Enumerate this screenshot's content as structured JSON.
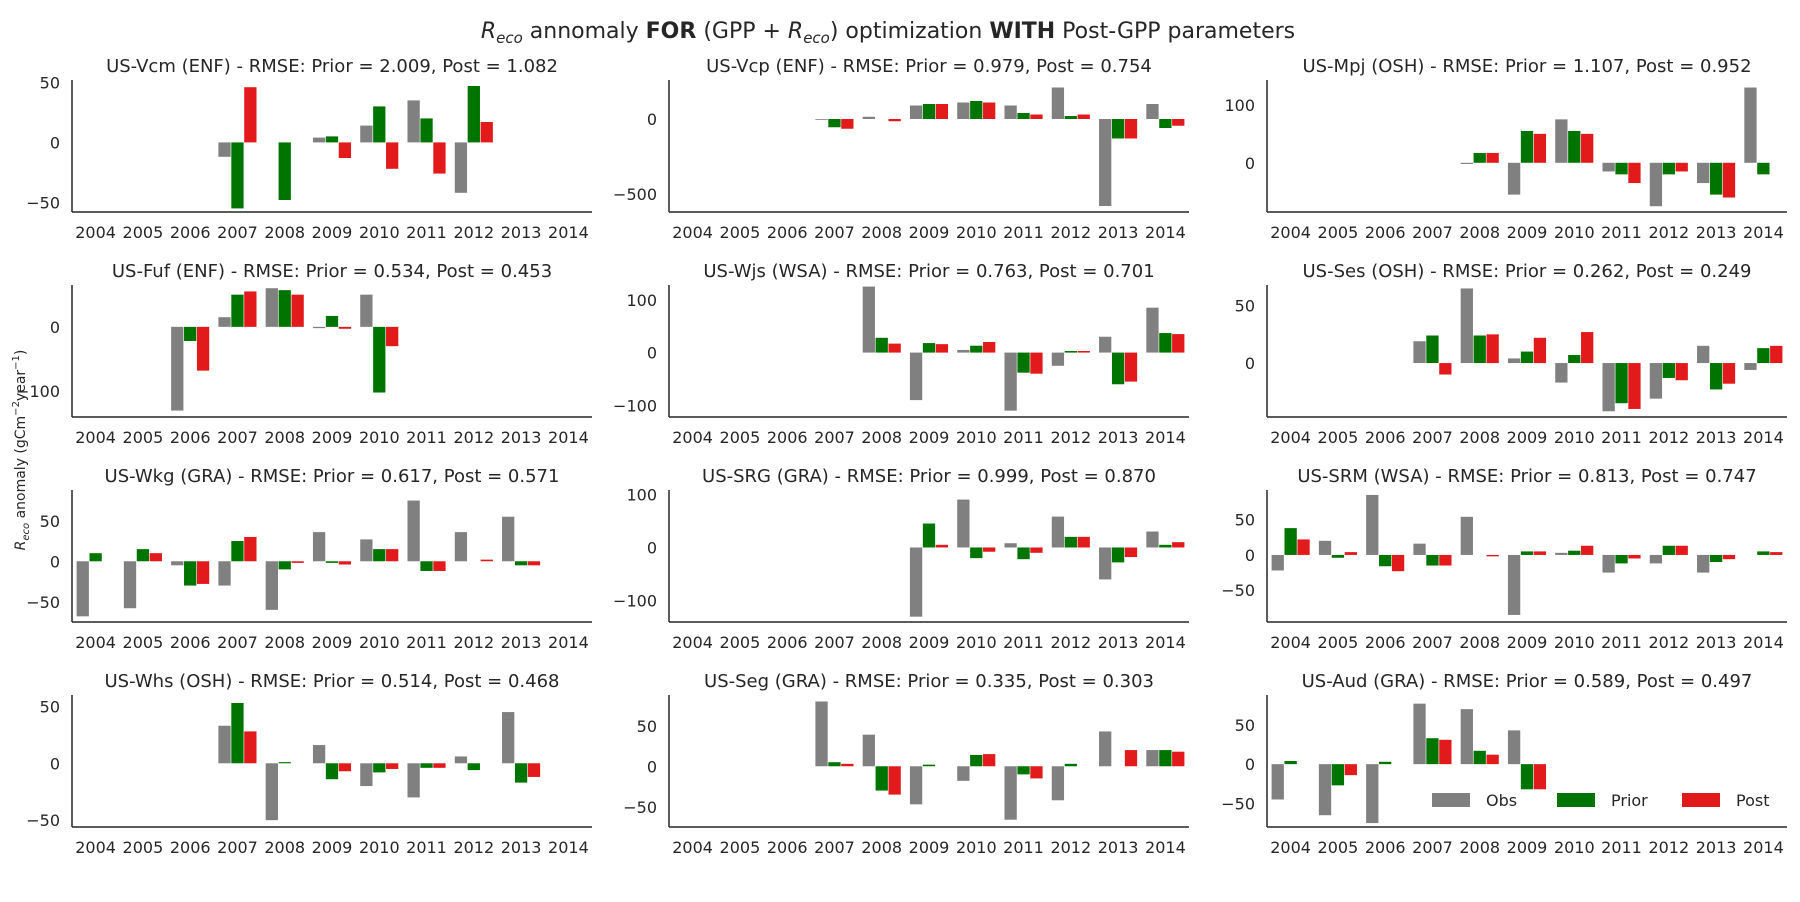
{
  "figure": {
    "title_pre": "R",
    "title_sub": "eco",
    "title_mid1": " annomaly ",
    "title_bold1": "FOR",
    "title_mid2": " (GPP + ",
    "title_sub_r": "R",
    "title_sub_r_sub": "eco",
    "title_mid3": ") optimization ",
    "title_bold2": "WITH",
    "title_mid4": " Post-GPP parameters",
    "ylabel_r": "R",
    "ylabel_sub": "eco",
    "ylabel_rest": " anomaly (gCm",
    "ylabel_sup1": "−2",
    "ylabel_rest2": "year",
    "ylabel_sup2": "−1",
    "ylabel_end": ")"
  },
  "colors": {
    "Obs": "#808080",
    "Prior": "#007400",
    "Post": "#e31a1c"
  },
  "legend": [
    "Obs",
    "Prior",
    "Post"
  ],
  "chart_data": [
    {
      "type": "bar",
      "title": "US-Vcm (ENF) - RMSE: Prior = 2.009, Post = 1.082",
      "categories": [
        "2004",
        "2005",
        "2006",
        "2007",
        "2008",
        "2009",
        "2010",
        "2011",
        "2012",
        "2013",
        "2014"
      ],
      "ylim": [
        -58,
        52
      ],
      "yticks": [
        50,
        0,
        -50
      ],
      "series": [
        {
          "name": "Obs",
          "values": [
            null,
            null,
            null,
            -12,
            null,
            4,
            14,
            35,
            -42,
            null,
            null
          ]
        },
        {
          "name": "Prior",
          "values": [
            null,
            null,
            null,
            -55,
            -48,
            5,
            30,
            20,
            47,
            null,
            null
          ]
        },
        {
          "name": "Post",
          "values": [
            null,
            null,
            null,
            46,
            null,
            -13,
            -22,
            -26,
            17,
            null,
            null
          ]
        }
      ]
    },
    {
      "type": "bar",
      "title": "US-Vcp (ENF) - RMSE: Prior = 0.979, Post = 0.754",
      "categories": [
        "2004",
        "2005",
        "2006",
        "2007",
        "2008",
        "2009",
        "2010",
        "2011",
        "2012",
        "2013",
        "2014"
      ],
      "ylim": [
        -620,
        260
      ],
      "yticks": [
        0,
        -500
      ],
      "series": [
        {
          "name": "Obs",
          "values": [
            null,
            null,
            null,
            -5,
            15,
            90,
            110,
            90,
            210,
            -580,
            100
          ]
        },
        {
          "name": "Prior",
          "values": [
            null,
            null,
            null,
            -55,
            null,
            100,
            120,
            40,
            20,
            -130,
            -60
          ]
        },
        {
          "name": "Post",
          "values": [
            null,
            null,
            null,
            -65,
            -15,
            100,
            110,
            30,
            30,
            -130,
            -45
          ]
        }
      ]
    },
    {
      "type": "bar",
      "title": "US-Mpj (OSH) - RMSE: Prior = 1.107, Post = 0.952",
      "categories": [
        "2004",
        "2005",
        "2006",
        "2007",
        "2008",
        "2009",
        "2010",
        "2011",
        "2012",
        "2013",
        "2014"
      ],
      "ylim": [
        -85,
        143
      ],
      "yticks": [
        100,
        0
      ],
      "series": [
        {
          "name": "Obs",
          "values": [
            null,
            null,
            null,
            null,
            -2,
            -55,
            75,
            -15,
            -75,
            -35,
            130
          ]
        },
        {
          "name": "Prior",
          "values": [
            null,
            null,
            null,
            null,
            17,
            55,
            55,
            -20,
            -20,
            -55,
            -20
          ]
        },
        {
          "name": "Post",
          "values": [
            null,
            null,
            null,
            null,
            17,
            50,
            50,
            -35,
            -15,
            -60,
            null
          ]
        }
      ]
    },
    {
      "type": "bar",
      "title": "US-Fuf (ENF) - RMSE: Prior = 0.534, Post = 0.453",
      "categories": [
        "2004",
        "2005",
        "2006",
        "2007",
        "2008",
        "2009",
        "2010",
        "2011",
        "2012",
        "2013",
        "2014"
      ],
      "ylim": [
        -140,
        65
      ],
      "yticks": [
        0,
        -100
      ],
      "series": [
        {
          "name": "Obs",
          "values": [
            null,
            null,
            -130,
            15,
            60,
            -2,
            50,
            null,
            null,
            null,
            null
          ]
        },
        {
          "name": "Prior",
          "values": [
            null,
            null,
            -22,
            50,
            57,
            17,
            -102,
            null,
            null,
            null,
            null
          ]
        },
        {
          "name": "Post",
          "values": [
            null,
            null,
            -68,
            55,
            50,
            -3,
            -30,
            null,
            null,
            null,
            null
          ]
        }
      ]
    },
    {
      "type": "bar",
      "title": "US-Wjs (WSA) - RMSE: Prior = 0.763, Post = 0.701",
      "categories": [
        "2004",
        "2005",
        "2006",
        "2007",
        "2008",
        "2009",
        "2010",
        "2011",
        "2012",
        "2013",
        "2014"
      ],
      "ylim": [
        -122,
        128
      ],
      "yticks": [
        100,
        0,
        -100
      ],
      "series": [
        {
          "name": "Obs",
          "values": [
            null,
            null,
            null,
            null,
            125,
            -90,
            5,
            -110,
            -25,
            30,
            85
          ]
        },
        {
          "name": "Prior",
          "values": [
            null,
            null,
            null,
            null,
            28,
            18,
            13,
            -38,
            3,
            -60,
            37
          ]
        },
        {
          "name": "Post",
          "values": [
            null,
            null,
            null,
            null,
            17,
            16,
            20,
            -40,
            3,
            -55,
            35
          ]
        }
      ]
    },
    {
      "type": "bar",
      "title": "US-Ses (OSH) - RMSE: Prior = 0.262, Post = 0.249",
      "categories": [
        "2004",
        "2005",
        "2006",
        "2007",
        "2008",
        "2009",
        "2010",
        "2011",
        "2012",
        "2013",
        "2014"
      ],
      "ylim": [
        -47,
        68
      ],
      "yticks": [
        50,
        0
      ],
      "series": [
        {
          "name": "Obs",
          "values": [
            null,
            null,
            null,
            19,
            65,
            4,
            -17,
            -42,
            -31,
            15,
            -6
          ]
        },
        {
          "name": "Prior",
          "values": [
            null,
            null,
            null,
            24,
            24,
            10,
            7,
            -35,
            -13,
            -23,
            13
          ]
        },
        {
          "name": "Post",
          "values": [
            null,
            null,
            null,
            -10,
            25,
            22,
            27,
            -40,
            -15,
            -18,
            15
          ]
        }
      ]
    },
    {
      "type": "bar",
      "title": "US-Wkg (GRA) - RMSE: Prior = 0.617, Post = 0.571",
      "categories": [
        "2004",
        "2005",
        "2006",
        "2007",
        "2008",
        "2009",
        "2010",
        "2011",
        "2012",
        "2013",
        "2014"
      ],
      "ylim": [
        -75,
        88
      ],
      "yticks": [
        50,
        0,
        -50
      ],
      "series": [
        {
          "name": "Obs",
          "values": [
            -68,
            -58,
            -5,
            -30,
            -60,
            36,
            27,
            75,
            36,
            55,
            null
          ]
        },
        {
          "name": "Prior",
          "values": [
            10,
            15,
            -30,
            25,
            -10,
            -2,
            15,
            -12,
            null,
            -5,
            null
          ]
        },
        {
          "name": "Post",
          "values": [
            null,
            10,
            -28,
            30,
            -2,
            -4,
            15,
            -12,
            2,
            -5,
            null
          ]
        }
      ]
    },
    {
      "type": "bar",
      "title": "US-SRG (GRA) - RMSE: Prior = 0.999, Post = 0.870",
      "categories": [
        "2004",
        "2005",
        "2006",
        "2007",
        "2008",
        "2009",
        "2010",
        "2011",
        "2012",
        "2013",
        "2014"
      ],
      "ylim": [
        -140,
        108
      ],
      "yticks": [
        100,
        0,
        -100
      ],
      "series": [
        {
          "name": "Obs",
          "values": [
            null,
            null,
            null,
            null,
            null,
            -130,
            90,
            8,
            58,
            -60,
            30
          ]
        },
        {
          "name": "Prior",
          "values": [
            null,
            null,
            null,
            null,
            null,
            45,
            -20,
            -22,
            20,
            -28,
            5
          ]
        },
        {
          "name": "Post",
          "values": [
            null,
            null,
            null,
            null,
            null,
            5,
            -8,
            -10,
            20,
            -18,
            10
          ]
        }
      ]
    },
    {
      "type": "bar",
      "title": "US-SRM (WSA) - RMSE: Prior = 0.813, Post = 0.747",
      "categories": [
        "2004",
        "2005",
        "2006",
        "2007",
        "2008",
        "2009",
        "2010",
        "2011",
        "2012",
        "2013",
        "2014"
      ],
      "ylim": [
        -95,
        92
      ],
      "yticks": [
        50,
        0,
        -50
      ],
      "series": [
        {
          "name": "Obs",
          "values": [
            -22,
            20,
            85,
            16,
            54,
            -85,
            3,
            -25,
            -12,
            -25,
            null
          ]
        },
        {
          "name": "Prior",
          "values": [
            38,
            -4,
            -16,
            -15,
            null,
            5,
            6,
            -12,
            13,
            -10,
            5
          ]
        },
        {
          "name": "Post",
          "values": [
            22,
            4,
            -23,
            -15,
            -2,
            5,
            13,
            -5,
            13,
            -6,
            4
          ]
        }
      ]
    },
    {
      "type": "bar",
      "title": "US-Whs (OSH) - RMSE: Prior = 0.514, Post = 0.468",
      "categories": [
        "2004",
        "2005",
        "2006",
        "2007",
        "2008",
        "2009",
        "2010",
        "2011",
        "2012",
        "2013",
        "2014"
      ],
      "ylim": [
        -56,
        60
      ],
      "yticks": [
        50,
        0,
        -50
      ],
      "series": [
        {
          "name": "Obs",
          "values": [
            null,
            null,
            null,
            33,
            -50,
            16,
            -20,
            -30,
            6,
            45,
            null
          ]
        },
        {
          "name": "Prior",
          "values": [
            null,
            null,
            null,
            53,
            1,
            -14,
            -8,
            -4,
            -6,
            -17,
            null
          ]
        },
        {
          "name": "Post",
          "values": [
            null,
            null,
            null,
            28,
            null,
            -7,
            -5,
            -4,
            null,
            -12,
            null
          ]
        }
      ]
    },
    {
      "type": "bar",
      "title": "US-Seg (GRA) - RMSE: Prior = 0.335, Post = 0.303",
      "categories": [
        "2004",
        "2005",
        "2006",
        "2007",
        "2008",
        "2009",
        "2010",
        "2011",
        "2012",
        "2013",
        "2014"
      ],
      "ylim": [
        -75,
        88
      ],
      "yticks": [
        50,
        0,
        -50
      ],
      "series": [
        {
          "name": "Obs",
          "values": [
            null,
            null,
            null,
            80,
            39,
            -47,
            -18,
            -66,
            -42,
            43,
            20
          ]
        },
        {
          "name": "Prior",
          "values": [
            null,
            null,
            null,
            5,
            -30,
            2,
            14,
            -10,
            3,
            null,
            20
          ]
        },
        {
          "name": "Post",
          "values": [
            null,
            null,
            null,
            3,
            -35,
            null,
            15,
            -15,
            null,
            20,
            18
          ]
        }
      ]
    },
    {
      "type": "bar",
      "title": "US-Aud (GRA) - RMSE: Prior = 0.589, Post = 0.497",
      "categories": [
        "2004",
        "2005",
        "2006",
        "2007",
        "2008",
        "2009",
        "2010",
        "2011",
        "2012",
        "2013",
        "2014"
      ],
      "ylim": [
        -80,
        88
      ],
      "yticks": [
        50,
        0,
        -50
      ],
      "series": [
        {
          "name": "Obs",
          "values": [
            -45,
            -65,
            -75,
            77,
            70,
            43,
            null,
            null,
            null,
            null,
            null
          ]
        },
        {
          "name": "Prior",
          "values": [
            4,
            -27,
            3,
            33,
            17,
            -32,
            null,
            null,
            null,
            null,
            null
          ]
        },
        {
          "name": "Post",
          "values": [
            null,
            -14,
            null,
            31,
            12,
            -32,
            null,
            null,
            null,
            null,
            null
          ]
        }
      ]
    }
  ]
}
